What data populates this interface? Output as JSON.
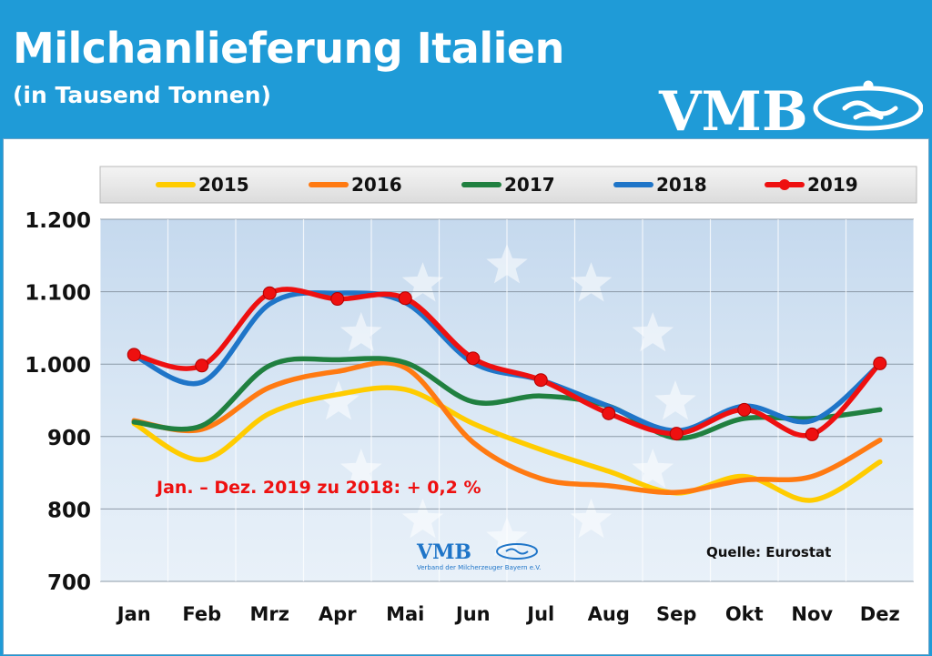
{
  "header": {
    "title": "Milchanlieferung Italien",
    "subtitle": "(in Tausend Tonnen)",
    "logo_text": "VMB"
  },
  "colors": {
    "header_bg": "#1f9bd7",
    "plot_bg": "#cfe0f0",
    "s2015": "#ffcc00",
    "s2016": "#ff7a12",
    "s2017": "#208040",
    "s2018": "#1f75c8",
    "s2019": "#ee1010"
  },
  "chart_data": {
    "type": "line",
    "categories": [
      "Jan",
      "Feb",
      "Mrz",
      "Apr",
      "Mai",
      "Jun",
      "Jul",
      "Aug",
      "Sep",
      "Okt",
      "Nov",
      "Dez"
    ],
    "ylim": [
      700,
      1200
    ],
    "yticks": [
      700,
      800,
      900,
      1000,
      1100,
      1200
    ],
    "ytick_labels": [
      "700",
      "800",
      "900",
      "1.000",
      "1.100",
      "1.200"
    ],
    "grid": true,
    "legend_position": "top",
    "series": [
      {
        "name": "2015",
        "color": "#ffcc00",
        "markers": false,
        "values": [
          918,
          868,
          932,
          958,
          965,
          918,
          882,
          852,
          822,
          845,
          812,
          865
        ]
      },
      {
        "name": "2016",
        "color": "#ff7a12",
        "markers": false,
        "values": [
          922,
          910,
          968,
          990,
          995,
          892,
          842,
          832,
          823,
          840,
          845,
          895
        ]
      },
      {
        "name": "2017",
        "color": "#208040",
        "markers": false,
        "values": [
          920,
          915,
          998,
          1006,
          1002,
          948,
          956,
          942,
          898,
          925,
          925,
          937
        ]
      },
      {
        "name": "2018",
        "color": "#1f75c8",
        "markers": false,
        "values": [
          1012,
          975,
          1083,
          1098,
          1085,
          1002,
          978,
          942,
          908,
          942,
          922,
          1000
        ]
      },
      {
        "name": "2019",
        "color": "#ee1010",
        "markers": true,
        "values": [
          1013,
          998,
          1098,
          1090,
          1091,
          1008,
          978,
          932,
          904,
          937,
          903,
          1001
        ]
      }
    ],
    "annotations": {
      "change": "Jan. – Dez. 2019 zu 2018: + 0,2 %",
      "source": "Quelle: Eurostat",
      "small_logo": "VMB",
      "small_logo_caption": "Verband der Milcherzeuger Bayern e.V."
    }
  }
}
